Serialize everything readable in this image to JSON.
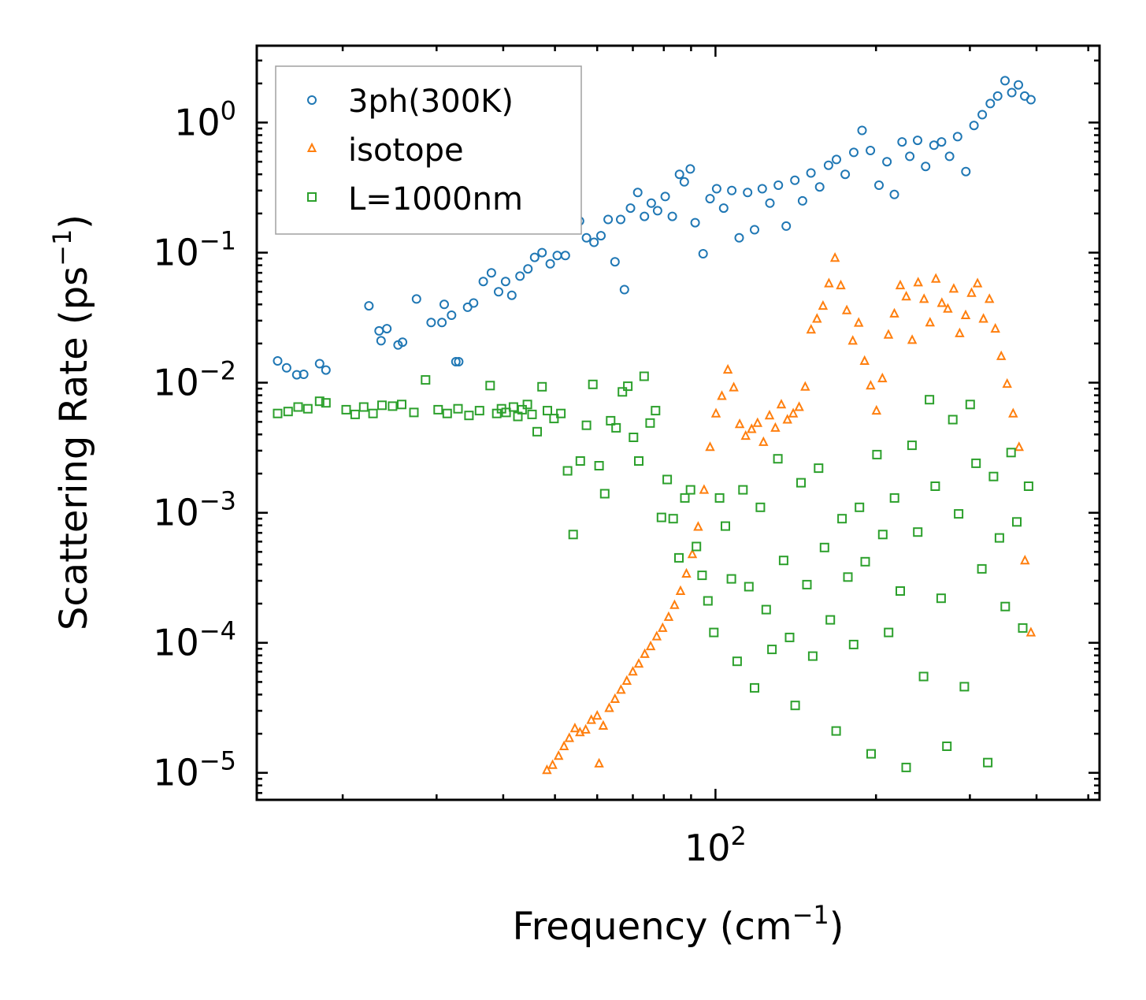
{
  "chart_data": {
    "type": "scatter",
    "title": "",
    "xlabel": {
      "base": "Frequency (cm",
      "sup": "−1",
      "tail": ")"
    },
    "ylabel": {
      "base": "Scattering Rate (ps",
      "sup": "−1",
      "tail": ")"
    },
    "xscale": "log",
    "yscale": "log",
    "xlim": [
      13.8,
      525
    ],
    "ylim": [
      6.2e-06,
      3.9
    ],
    "x_ticks": [
      {
        "value": 100,
        "base": "10",
        "exp": "2"
      }
    ],
    "y_ticks": [
      {
        "value": 1,
        "base": "10",
        "exp": "0"
      },
      {
        "value": 0.1,
        "base": "10",
        "exp": "−1"
      },
      {
        "value": 0.01,
        "base": "10",
        "exp": "−2"
      },
      {
        "value": 0.001,
        "base": "10",
        "exp": "−3"
      },
      {
        "value": 0.0001,
        "base": "10",
        "exp": "−4"
      },
      {
        "value": 1e-05,
        "base": "10",
        "exp": "−5"
      }
    ],
    "legend": {
      "placement": "upper-left",
      "entries": [
        "3ph(300K)",
        "isotope",
        "L=1000nm"
      ]
    },
    "grid": false,
    "series": [
      {
        "name": "3ph(300K)",
        "marker": "circle",
        "color": "#1f77b4",
        "points": [
          [
            15.1,
            0.0147
          ],
          [
            15.7,
            0.013
          ],
          [
            16.4,
            0.0115
          ],
          [
            16.9,
            0.0116
          ],
          [
            18.1,
            0.014
          ],
          [
            18.6,
            0.0125
          ],
          [
            22.4,
            0.039
          ],
          [
            23.4,
            0.025
          ],
          [
            23.6,
            0.021
          ],
          [
            24.2,
            0.026
          ],
          [
            25.4,
            0.0195
          ],
          [
            25.9,
            0.0205
          ],
          [
            27.5,
            0.044
          ],
          [
            29.3,
            0.029
          ],
          [
            30.7,
            0.029
          ],
          [
            31.0,
            0.04
          ],
          [
            32.0,
            0.033
          ],
          [
            32.6,
            0.0145
          ],
          [
            33.0,
            0.0145
          ],
          [
            34.3,
            0.038
          ],
          [
            35.2,
            0.041
          ],
          [
            36.7,
            0.06
          ],
          [
            38.0,
            0.07
          ],
          [
            39.2,
            0.05
          ],
          [
            40.4,
            0.06
          ],
          [
            41.5,
            0.047
          ],
          [
            43.0,
            0.066
          ],
          [
            44.5,
            0.075
          ],
          [
            45.8,
            0.092
          ],
          [
            47.3,
            0.1
          ],
          [
            49.0,
            0.082
          ],
          [
            50.5,
            0.095
          ],
          [
            52.3,
            0.095
          ],
          [
            54.0,
            0.165
          ],
          [
            55.6,
            0.175
          ],
          [
            57.3,
            0.13
          ],
          [
            59.2,
            0.12
          ],
          [
            61.0,
            0.135
          ],
          [
            62.9,
            0.18
          ],
          [
            64.8,
            0.085
          ],
          [
            66.4,
            0.18
          ],
          [
            67.5,
            0.052
          ],
          [
            69.3,
            0.22
          ],
          [
            71.5,
            0.29
          ],
          [
            73.6,
            0.19
          ],
          [
            75.8,
            0.24
          ],
          [
            77.9,
            0.21
          ],
          [
            80.5,
            0.27
          ],
          [
            83.0,
            0.19
          ],
          [
            85.6,
            0.4
          ],
          [
            87.4,
            0.35
          ],
          [
            89.7,
            0.44
          ],
          [
            91.6,
            0.17
          ],
          [
            94.8,
            0.098
          ],
          [
            97.7,
            0.26
          ],
          [
            100.5,
            0.31
          ],
          [
            103.6,
            0.22
          ],
          [
            107.3,
            0.3
          ],
          [
            110.8,
            0.13
          ],
          [
            114.9,
            0.29
          ],
          [
            118.4,
            0.15
          ],
          [
            122.4,
            0.31
          ],
          [
            126.5,
            0.24
          ],
          [
            131.2,
            0.33
          ],
          [
            135.7,
            0.16
          ],
          [
            140.9,
            0.36
          ],
          [
            145.6,
            0.25
          ],
          [
            151.0,
            0.41
          ],
          [
            156.8,
            0.32
          ],
          [
            162.9,
            0.47
          ],
          [
            168.6,
            0.52
          ],
          [
            175.1,
            0.4
          ],
          [
            181.7,
            0.59
          ],
          [
            188.3,
            0.87
          ],
          [
            195.2,
            0.61
          ],
          [
            202.6,
            0.33
          ],
          [
            209.7,
            0.5
          ],
          [
            216.5,
            0.28
          ],
          [
            223.8,
            0.71
          ],
          [
            231.4,
            0.55
          ],
          [
            239.3,
            0.73
          ],
          [
            247.8,
            0.46
          ],
          [
            256.9,
            0.67
          ],
          [
            265.4,
            0.71
          ],
          [
            274.8,
            0.55
          ],
          [
            284.5,
            0.78
          ],
          [
            294.8,
            0.42
          ],
          [
            305.3,
            0.95
          ],
          [
            316.4,
            1.15
          ],
          [
            327.6,
            1.4
          ],
          [
            338.2,
            1.6
          ],
          [
            349.1,
            2.1
          ],
          [
            359.4,
            1.7
          ],
          [
            369.8,
            1.95
          ],
          [
            380.1,
            1.6
          ],
          [
            390.4,
            1.5
          ]
        ]
      },
      {
        "name": "isotope",
        "marker": "triangle",
        "color": "#ff7f0e",
        "points": [
          [
            48.3,
            1.05e-05
          ],
          [
            49.5,
            1.15e-05
          ],
          [
            50.8,
            1.35e-05
          ],
          [
            52.0,
            1.6e-05
          ],
          [
            53.2,
            1.85e-05
          ],
          [
            54.5,
            2.2e-05
          ],
          [
            55.7,
            2.05e-05
          ],
          [
            57.1,
            2.15e-05
          ],
          [
            58.5,
            2.55e-05
          ],
          [
            60.0,
            2.75e-05
          ],
          [
            60.5,
            1.18e-05
          ],
          [
            61.6,
            2.3e-05
          ],
          [
            63.2,
            3.15e-05
          ],
          [
            64.8,
            3.7e-05
          ],
          [
            66.5,
            4.35e-05
          ],
          [
            68.2,
            5.1e-05
          ],
          [
            70.0,
            6e-05
          ],
          [
            71.8,
            6.9e-05
          ],
          [
            73.7,
            8.2e-05
          ],
          [
            75.6,
            9.4e-05
          ],
          [
            77.6,
            0.000112
          ],
          [
            79.6,
            0.00013
          ],
          [
            81.7,
            0.000158
          ],
          [
            83.8,
            0.000195
          ],
          [
            86.0,
            0.00025
          ],
          [
            88.2,
            0.00034
          ],
          [
            90.5,
            0.00048
          ],
          [
            92.8,
            0.00078
          ],
          [
            95.2,
            0.0015
          ],
          [
            97.7,
            0.0032
          ],
          [
            100.2,
            0.0058
          ],
          [
            102.8,
            0.0079
          ],
          [
            105.5,
            0.0126
          ],
          [
            108.2,
            0.0092
          ],
          [
            111.0,
            0.0048
          ],
          [
            113.9,
            0.0039
          ],
          [
            116.9,
            0.0044
          ],
          [
            119.9,
            0.0049
          ],
          [
            123.0,
            0.0035
          ],
          [
            126.3,
            0.0056
          ],
          [
            129.5,
            0.0045
          ],
          [
            132.9,
            0.0068
          ],
          [
            136.4,
            0.0052
          ],
          [
            139.9,
            0.0058
          ],
          [
            143.5,
            0.0065
          ],
          [
            147.3,
            0.0093
          ],
          [
            151.1,
            0.0256
          ],
          [
            155.0,
            0.031
          ],
          [
            159.1,
            0.039
          ],
          [
            163.2,
            0.058
          ],
          [
            167.5,
            0.0912
          ],
          [
            171.8,
            0.056
          ],
          [
            176.3,
            0.036
          ],
          [
            180.9,
            0.021
          ],
          [
            185.6,
            0.0289
          ],
          [
            190.4,
            0.0147
          ],
          [
            195.4,
            0.0095
          ],
          [
            200.4,
            0.0061
          ],
          [
            205.6,
            0.0108
          ],
          [
            211.0,
            0.0234
          ],
          [
            216.5,
            0.034
          ],
          [
            222.1,
            0.056
          ],
          [
            227.9,
            0.046
          ],
          [
            233.8,
            0.0213
          ],
          [
            239.9,
            0.059
          ],
          [
            246.1,
            0.044
          ],
          [
            252.5,
            0.029
          ],
          [
            259.0,
            0.063
          ],
          [
            265.8,
            0.041
          ],
          [
            272.7,
            0.037
          ],
          [
            279.8,
            0.0528
          ],
          [
            287.0,
            0.024
          ],
          [
            294.5,
            0.033
          ],
          [
            302.1,
            0.049
          ],
          [
            310.0,
            0.058
          ],
          [
            318.0,
            0.031
          ],
          [
            326.3,
            0.044
          ],
          [
            334.8,
            0.026
          ],
          [
            343.4,
            0.016
          ],
          [
            352.3,
            0.0098
          ],
          [
            361.5,
            0.0058
          ],
          [
            370.9,
            0.0032
          ],
          [
            380.5,
            0.00043
          ],
          [
            390.4,
            0.00012
          ]
        ]
      },
      {
        "name": "L=1000nm",
        "marker": "square",
        "color": "#2ca02c",
        "points": [
          [
            15.1,
            0.0058
          ],
          [
            15.8,
            0.006
          ],
          [
            16.5,
            0.0065
          ],
          [
            17.2,
            0.0063
          ],
          [
            18.1,
            0.0072
          ],
          [
            18.6,
            0.007
          ],
          [
            20.3,
            0.0062
          ],
          [
            21.1,
            0.0057
          ],
          [
            21.9,
            0.0065
          ],
          [
            22.8,
            0.0058
          ],
          [
            23.7,
            0.0067
          ],
          [
            24.8,
            0.0066
          ],
          [
            25.8,
            0.0068
          ],
          [
            27.2,
            0.0059
          ],
          [
            28.6,
            0.0105
          ],
          [
            30.2,
            0.0062
          ],
          [
            31.4,
            0.0058
          ],
          [
            32.9,
            0.0063
          ],
          [
            34.5,
            0.0056
          ],
          [
            36.1,
            0.0061
          ],
          [
            37.8,
            0.0095
          ],
          [
            38.9,
            0.0058
          ],
          [
            39.7,
            0.0063
          ],
          [
            40.5,
            0.0059
          ],
          [
            41.8,
            0.0065
          ],
          [
            42.6,
            0.0055
          ],
          [
            43.4,
            0.0062
          ],
          [
            44.4,
            0.0068
          ],
          [
            45.3,
            0.0057
          ],
          [
            46.3,
            0.0042
          ],
          [
            47.3,
            0.0093
          ],
          [
            48.4,
            0.0061
          ],
          [
            49.8,
            0.0053
          ],
          [
            51.3,
            0.0058
          ],
          [
            52.8,
            0.0021
          ],
          [
            54.1,
            0.00068
          ],
          [
            55.8,
            0.0025
          ],
          [
            57.3,
            0.0047
          ],
          [
            58.9,
            0.0097
          ],
          [
            60.5,
            0.0023
          ],
          [
            62.0,
            0.0014
          ],
          [
            63.6,
            0.0051
          ],
          [
            65.1,
            0.0045
          ],
          [
            66.9,
            0.0085
          ],
          [
            68.5,
            0.0094
          ],
          [
            70.2,
            0.0038
          ],
          [
            71.8,
            0.0025
          ],
          [
            73.5,
            0.0112
          ],
          [
            75.4,
            0.0049
          ],
          [
            77.2,
            0.0061
          ],
          [
            79.2,
            0.00092
          ],
          [
            81.2,
            0.0018
          ],
          [
            83.3,
            0.0009
          ],
          [
            85.4,
            0.00045
          ],
          [
            87.6,
            0.0013
          ],
          [
            89.8,
            0.0015
          ],
          [
            92.1,
            0.00055
          ],
          [
            94.4,
            0.00033
          ],
          [
            96.8,
            0.00021
          ],
          [
            99.3,
            0.00012
          ],
          [
            101.8,
            0.0013
          ],
          [
            104.4,
            0.00079
          ],
          [
            107.1,
            0.00031
          ],
          [
            109.8,
            7.2e-05
          ],
          [
            112.6,
            0.0015
          ],
          [
            115.5,
            0.00027
          ],
          [
            118.4,
            4.5e-05
          ],
          [
            121.4,
            0.0011
          ],
          [
            124.5,
            0.00018
          ],
          [
            127.6,
            8.9e-05
          ],
          [
            130.9,
            0.0026
          ],
          [
            134.2,
            0.00043
          ],
          [
            137.7,
            0.00011
          ],
          [
            141.1,
            3.3e-05
          ],
          [
            144.7,
            0.0017
          ],
          [
            148.4,
            0.00028
          ],
          [
            152.2,
            7.9e-05
          ],
          [
            156.1,
            0.0022
          ],
          [
            160.1,
            0.00054
          ],
          [
            164.2,
            0.00015
          ],
          [
            168.4,
            2.1e-05
          ],
          [
            172.7,
            0.0009
          ],
          [
            177.1,
            0.00032
          ],
          [
            181.6,
            9.7e-05
          ],
          [
            186.2,
            0.0011
          ],
          [
            190.9,
            0.00042
          ],
          [
            195.8,
            1.4e-05
          ],
          [
            200.8,
            0.0028
          ],
          [
            205.9,
            0.00068
          ],
          [
            211.2,
            0.00012
          ],
          [
            216.6,
            0.0013
          ],
          [
            222.1,
            0.00025
          ],
          [
            227.8,
            1.1e-05
          ],
          [
            233.6,
            0.0033
          ],
          [
            239.5,
            0.00071
          ],
          [
            245.6,
            5.5e-05
          ],
          [
            251.9,
            0.0074
          ],
          [
            258.3,
            0.0016
          ],
          [
            264.9,
            0.00022
          ],
          [
            271.6,
            1.6e-05
          ],
          [
            278.6,
            0.0052
          ],
          [
            285.7,
            0.00098
          ],
          [
            292.9,
            4.6e-05
          ],
          [
            300.4,
            0.0068
          ],
          [
            308.0,
            0.0024
          ],
          [
            315.9,
            0.00037
          ],
          [
            324.0,
            1.2e-05
          ],
          [
            332.2,
            0.0019
          ],
          [
            340.7,
            0.00064
          ],
          [
            349.4,
            0.00019
          ],
          [
            358.3,
            0.0029
          ],
          [
            367.4,
            0.00085
          ],
          [
            376.8,
            0.00013
          ],
          [
            386.4,
            0.0016
          ]
        ]
      }
    ]
  }
}
